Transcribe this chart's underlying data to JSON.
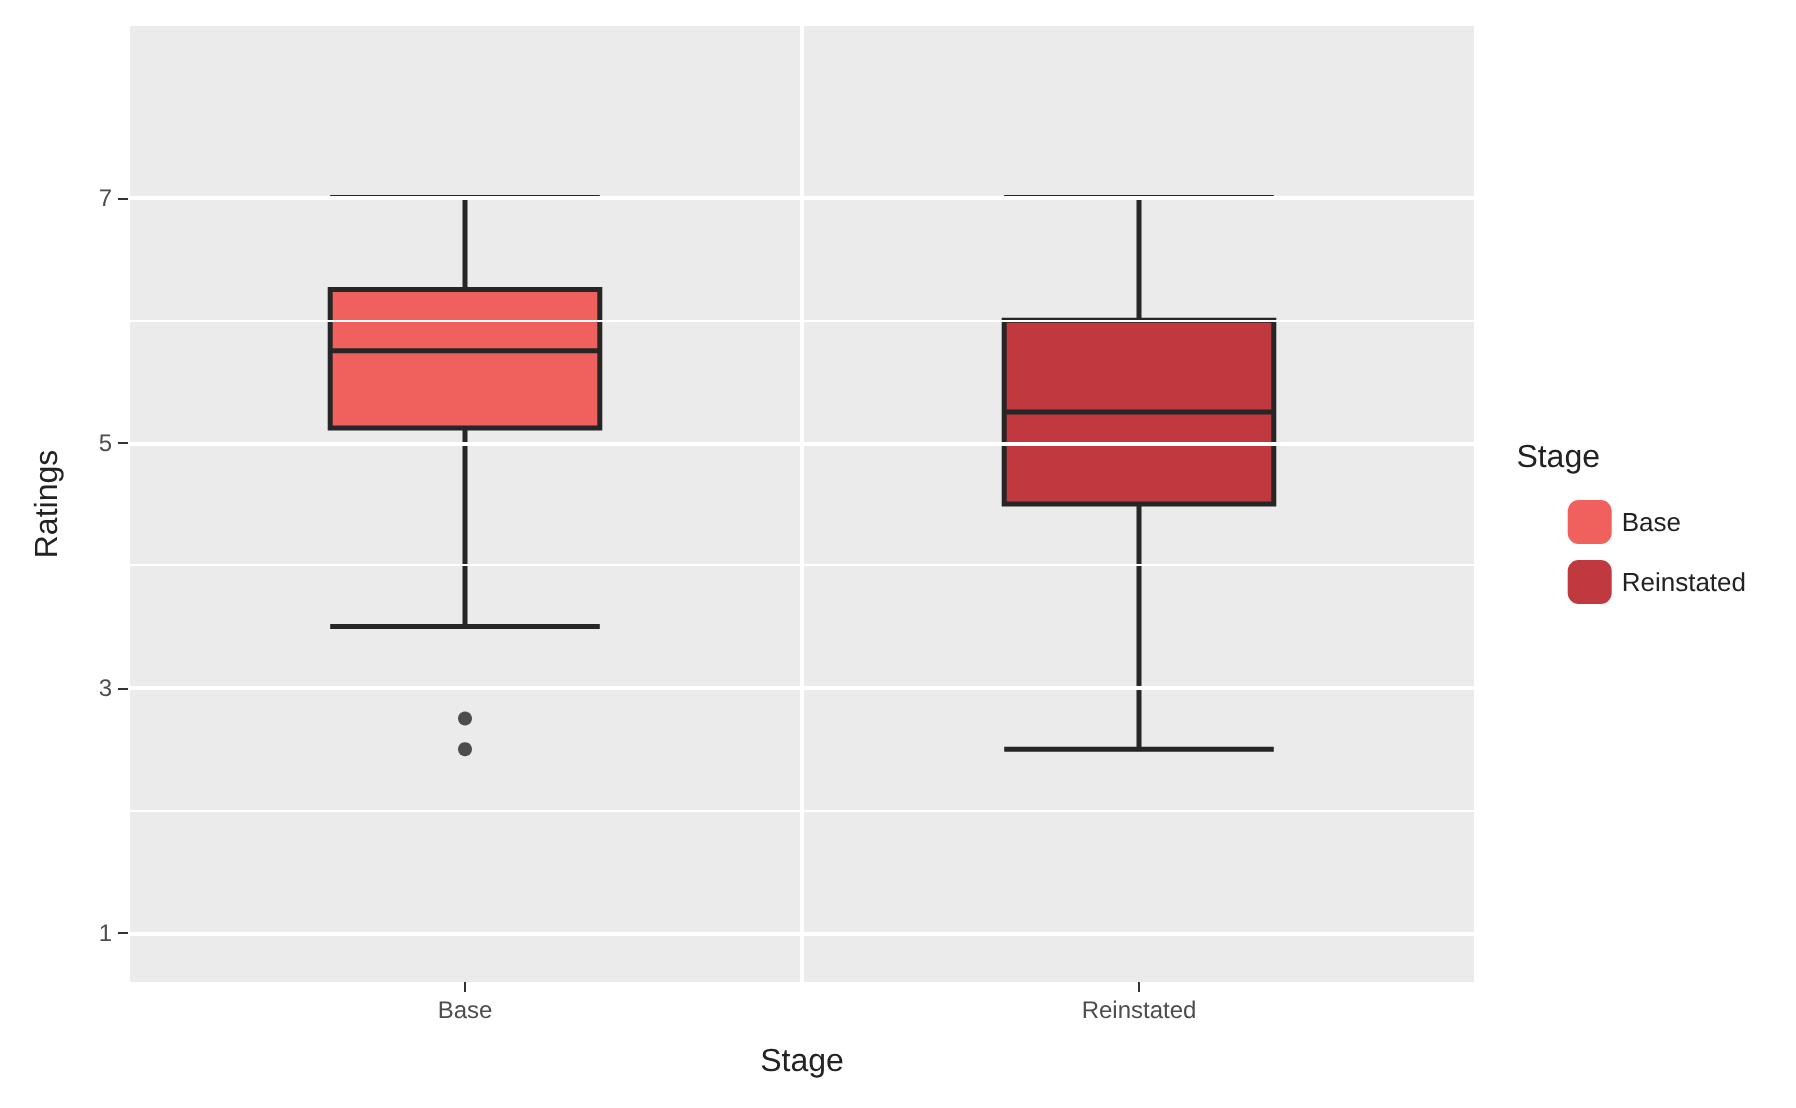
{
  "chart_data": {
    "type": "box",
    "xlabel": "Stage",
    "ylabel": "Ratings",
    "legend_title": "Stage",
    "legend": "right",
    "grid": true,
    "categories": [
      "Base",
      "Reinstated"
    ],
    "ylim": [
      0.6,
      8.4
    ],
    "yticks": [
      1,
      {
        "value": 2,
        "label": null
      },
      3,
      {
        "value": 4,
        "label": null
      },
      5,
      {
        "value": 6,
        "label": null
      },
      7
    ],
    "series": [
      {
        "name": "Base",
        "color": "#f0605d",
        "boxes": [
          {
            "low": 3.5,
            "q1": 5.12,
            "median": 5.75,
            "q3": 6.25,
            "high": 7,
            "outliers": [
              2.75,
              2.5
            ]
          },
          null
        ]
      },
      {
        "name": "Reinstated",
        "color": "#c0393f",
        "boxes": [
          null,
          {
            "low": 2.5,
            "q1": 4.5,
            "median": 5.25,
            "q3": 6,
            "high": 7
          }
        ]
      }
    ]
  }
}
